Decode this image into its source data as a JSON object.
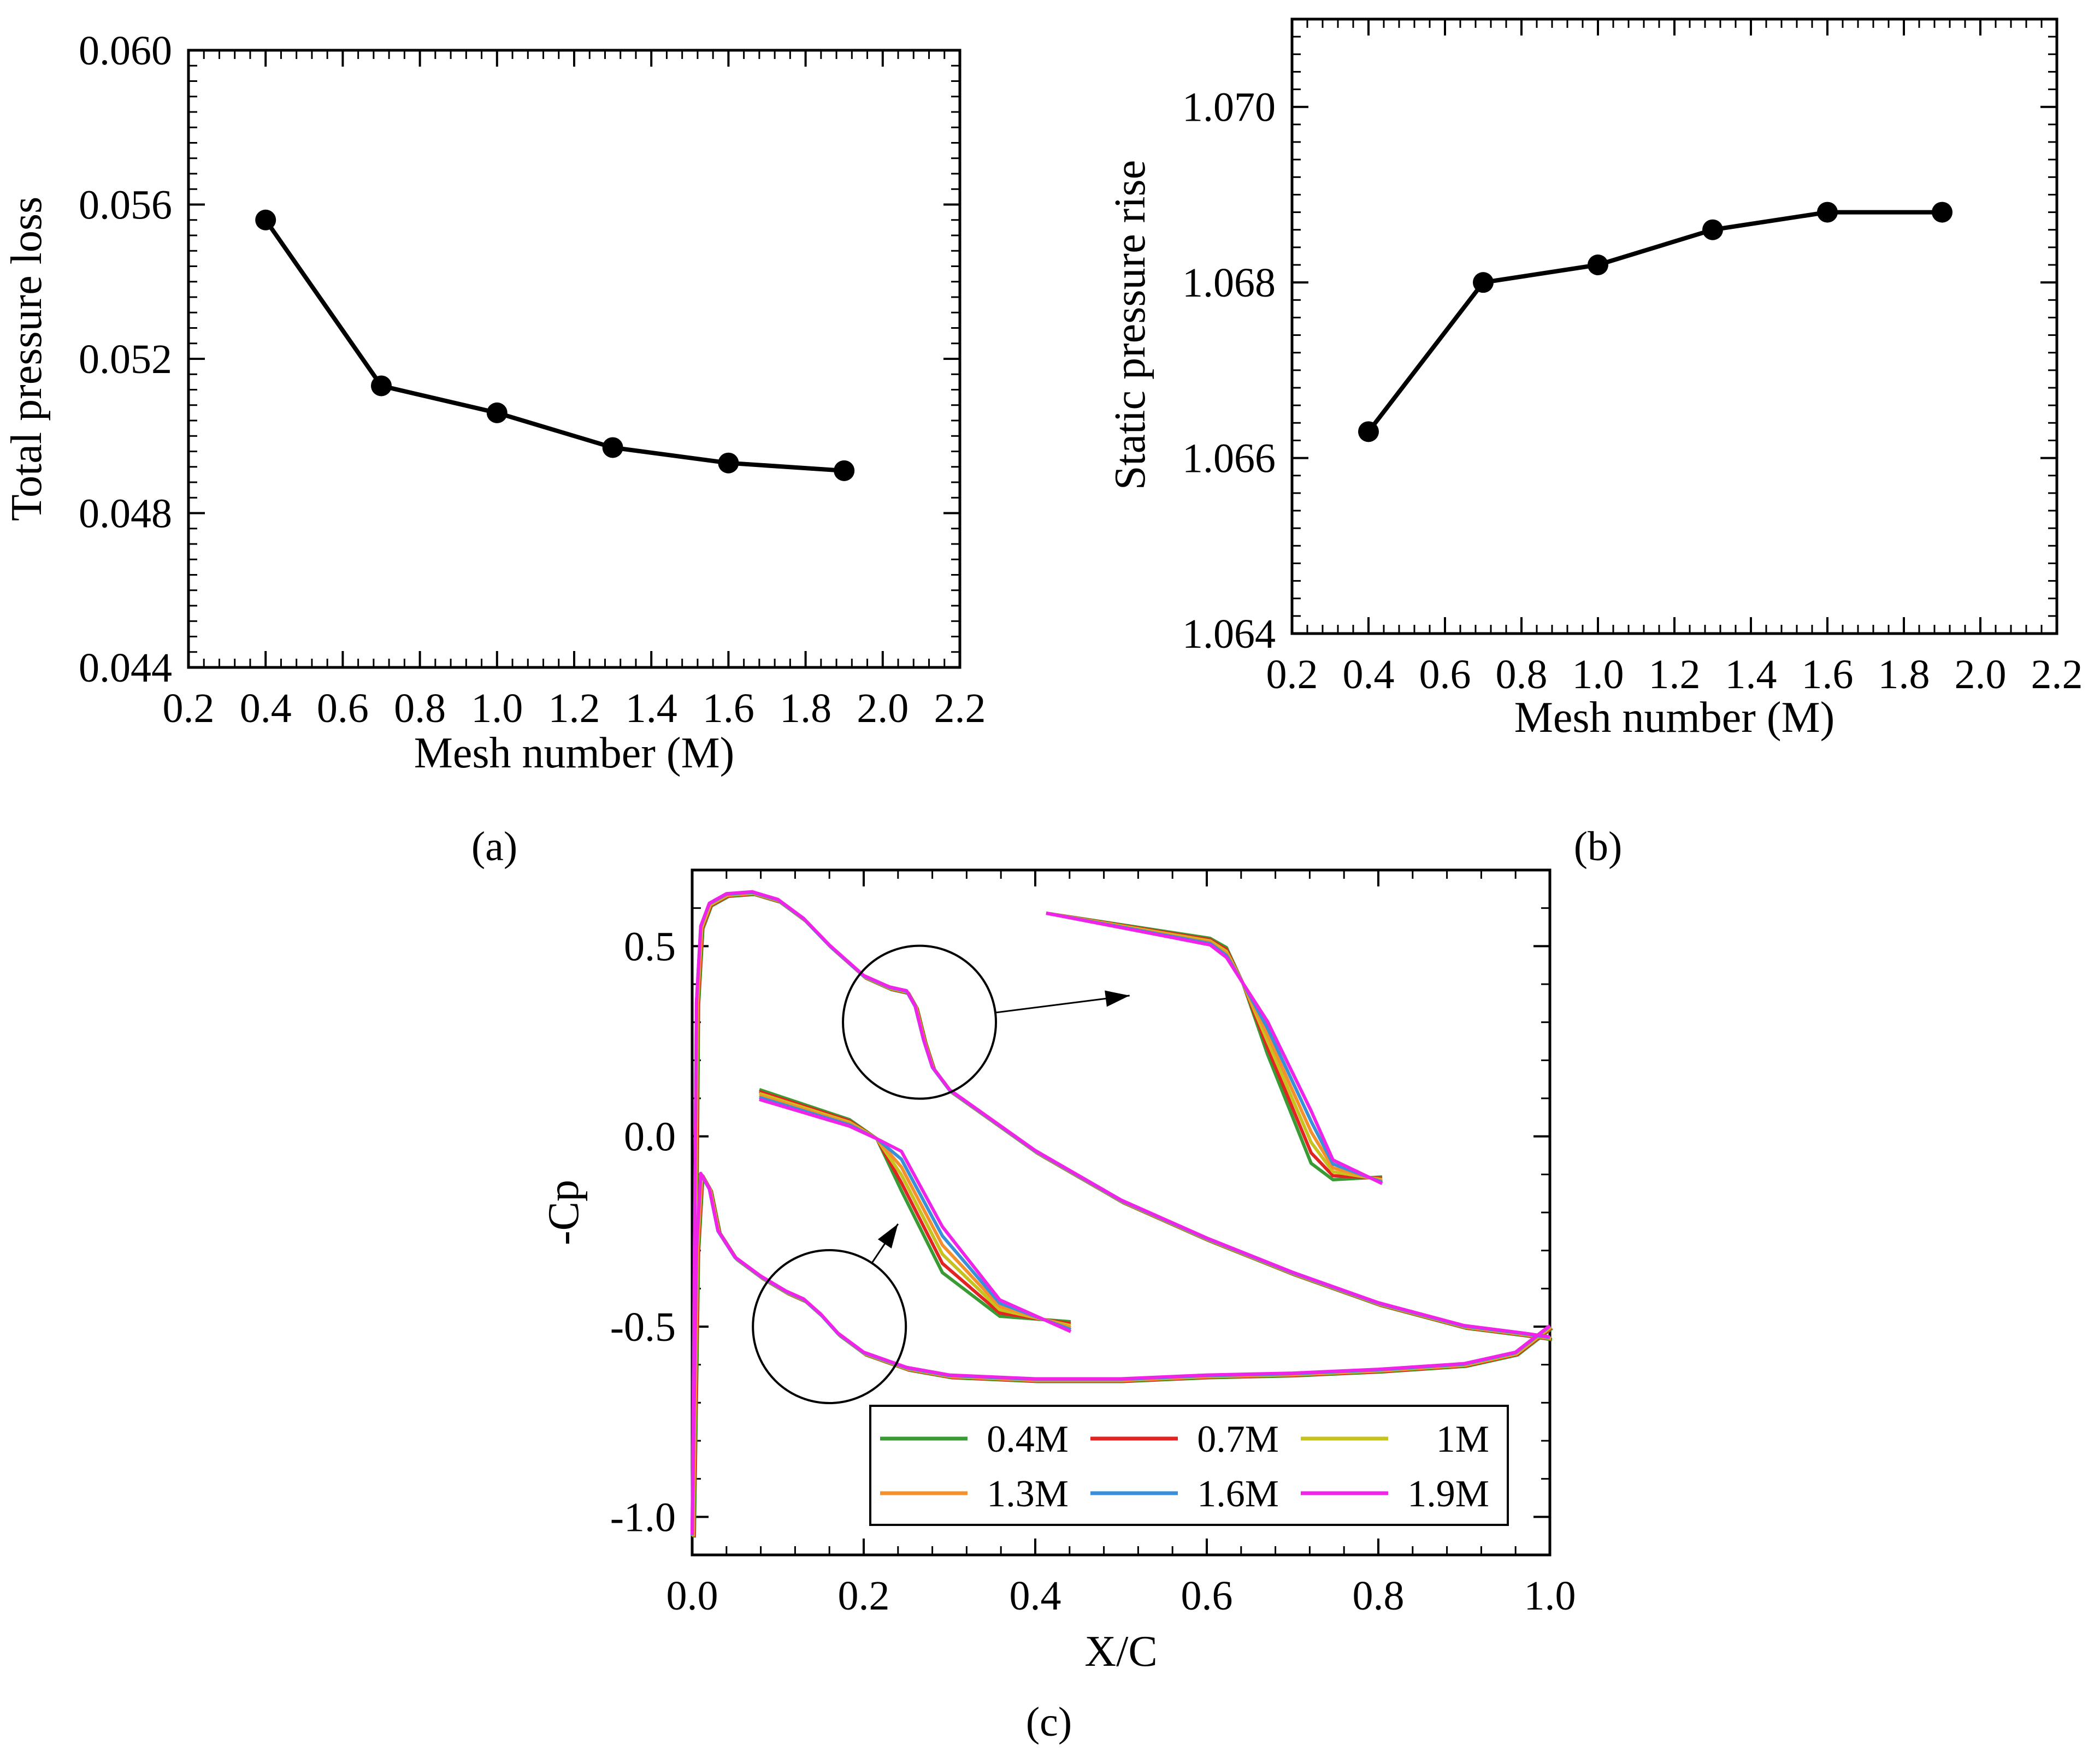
{
  "captions": {
    "a": "(a)",
    "b": "(b)",
    "c": "(c)"
  },
  "chart_data": [
    {
      "id": "a",
      "type": "line",
      "title": "",
      "xlabel": "Mesh number (M)",
      "ylabel": "Total pressure loss",
      "xlim": [
        0.2,
        2.2
      ],
      "ylim": [
        0.044,
        0.06
      ],
      "xticks": [
        0.2,
        0.4,
        0.6,
        0.8,
        1.0,
        1.2,
        1.4,
        1.6,
        1.8,
        2.0,
        2.2
      ],
      "xtick_labels": [
        "0.2",
        "0.4",
        "0.6",
        "0.8",
        "1.0",
        "1.2",
        "1.4",
        "1.6",
        "1.8",
        "2.0",
        "2.2"
      ],
      "yticks": [
        0.044,
        0.048,
        0.052,
        0.056,
        0.06
      ],
      "ytick_labels": [
        "0.044",
        "0.048",
        "0.052",
        "0.056",
        "0.060"
      ],
      "x": [
        0.4,
        0.7,
        1.0,
        1.3,
        1.6,
        1.9
      ],
      "values": [
        0.0556,
        0.0513,
        0.0506,
        0.0497,
        0.0493,
        0.0491
      ],
      "marker": "circle",
      "color": "#000000"
    },
    {
      "id": "b",
      "type": "line",
      "title": "",
      "xlabel": "Mesh number (M)",
      "ylabel": "Static pressure rise",
      "xlim": [
        0.2,
        2.2
      ],
      "ylim": [
        1.064,
        1.071
      ],
      "xticks": [
        0.2,
        0.4,
        0.6,
        0.8,
        1.0,
        1.2,
        1.4,
        1.6,
        1.8,
        2.0,
        2.2
      ],
      "xtick_labels": [
        "0.2",
        "0.4",
        "0.6",
        "0.8",
        "1.0",
        "1.2",
        "1.4",
        "1.6",
        "1.8",
        "2.0",
        "2.2"
      ],
      "yticks": [
        1.064,
        1.066,
        1.068,
        1.07
      ],
      "ytick_labels": [
        "1.064",
        "1.066",
        "1.068",
        "1.070"
      ],
      "x": [
        0.4,
        0.7,
        1.0,
        1.3,
        1.6,
        1.9
      ],
      "values": [
        1.0663,
        1.068,
        1.0682,
        1.0686,
        1.0688,
        1.0688
      ],
      "marker": "circle",
      "color": "#000000"
    },
    {
      "id": "c",
      "type": "line",
      "title": "",
      "xlabel": "X/C",
      "ylabel": "-Cp",
      "xlim": [
        0.0,
        1.0
      ],
      "ylim": [
        -1.1,
        0.7
      ],
      "xticks": [
        0.0,
        0.2,
        0.4,
        0.6,
        0.8,
        1.0
      ],
      "xtick_labels": [
        "0.0",
        "0.2",
        "0.4",
        "0.6",
        "0.8",
        "1.0"
      ],
      "yticks": [
        -1.0,
        -0.5,
        0.0,
        0.5
      ],
      "ytick_labels": [
        "-1.0",
        "-0.5",
        "0.0",
        "0.5"
      ],
      "legend_position": "bottom-right",
      "legend": [
        {
          "name": "0.4M",
          "color": "#3a9b35"
        },
        {
          "name": "0.7M",
          "color": "#e32222"
        },
        {
          "name": "1M",
          "color": "#c7c21e"
        },
        {
          "name": "1.3M",
          "color": "#f5912c"
        },
        {
          "name": "1.6M",
          "color": "#3a8fd9"
        },
        {
          "name": "1.9M",
          "color": "#f024e8"
        }
      ],
      "suction_side": {
        "x": [
          0.0,
          0.005,
          0.01,
          0.02,
          0.04,
          0.07,
          0.1,
          0.13,
          0.16,
          0.2,
          0.23,
          0.25,
          0.26,
          0.27,
          0.28,
          0.3,
          0.35,
          0.4,
          0.5,
          0.6,
          0.7,
          0.8,
          0.9,
          0.97,
          1.0
        ],
        "values": [
          -1.05,
          0.35,
          0.55,
          0.61,
          0.635,
          0.64,
          0.62,
          0.57,
          0.5,
          0.42,
          0.39,
          0.38,
          0.34,
          0.25,
          0.18,
          0.12,
          0.04,
          -0.04,
          -0.17,
          -0.27,
          -0.36,
          -0.44,
          -0.5,
          -0.52,
          -0.53
        ]
      },
      "pressure_side": {
        "x": [
          0.0,
          0.005,
          0.01,
          0.02,
          0.03,
          0.05,
          0.08,
          0.11,
          0.13,
          0.15,
          0.17,
          0.2,
          0.25,
          0.3,
          0.4,
          0.5,
          0.6,
          0.7,
          0.8,
          0.9,
          0.96,
          1.0
        ],
        "values": [
          -1.05,
          -0.3,
          -0.1,
          -0.14,
          -0.25,
          -0.32,
          -0.37,
          -0.41,
          -0.43,
          -0.47,
          -0.52,
          -0.57,
          -0.61,
          -0.63,
          -0.64,
          -0.64,
          -0.63,
          -0.625,
          -0.615,
          -0.6,
          -0.57,
          -0.5
        ]
      },
      "zoom_insets": [
        {
          "center_x": 0.265,
          "center_y": 0.3,
          "target_x": 0.51,
          "target_y": 0.37
        },
        {
          "center_x": 0.16,
          "center_y": -0.5,
          "target_x": 0.24,
          "target_y": -0.23
        }
      ]
    }
  ]
}
